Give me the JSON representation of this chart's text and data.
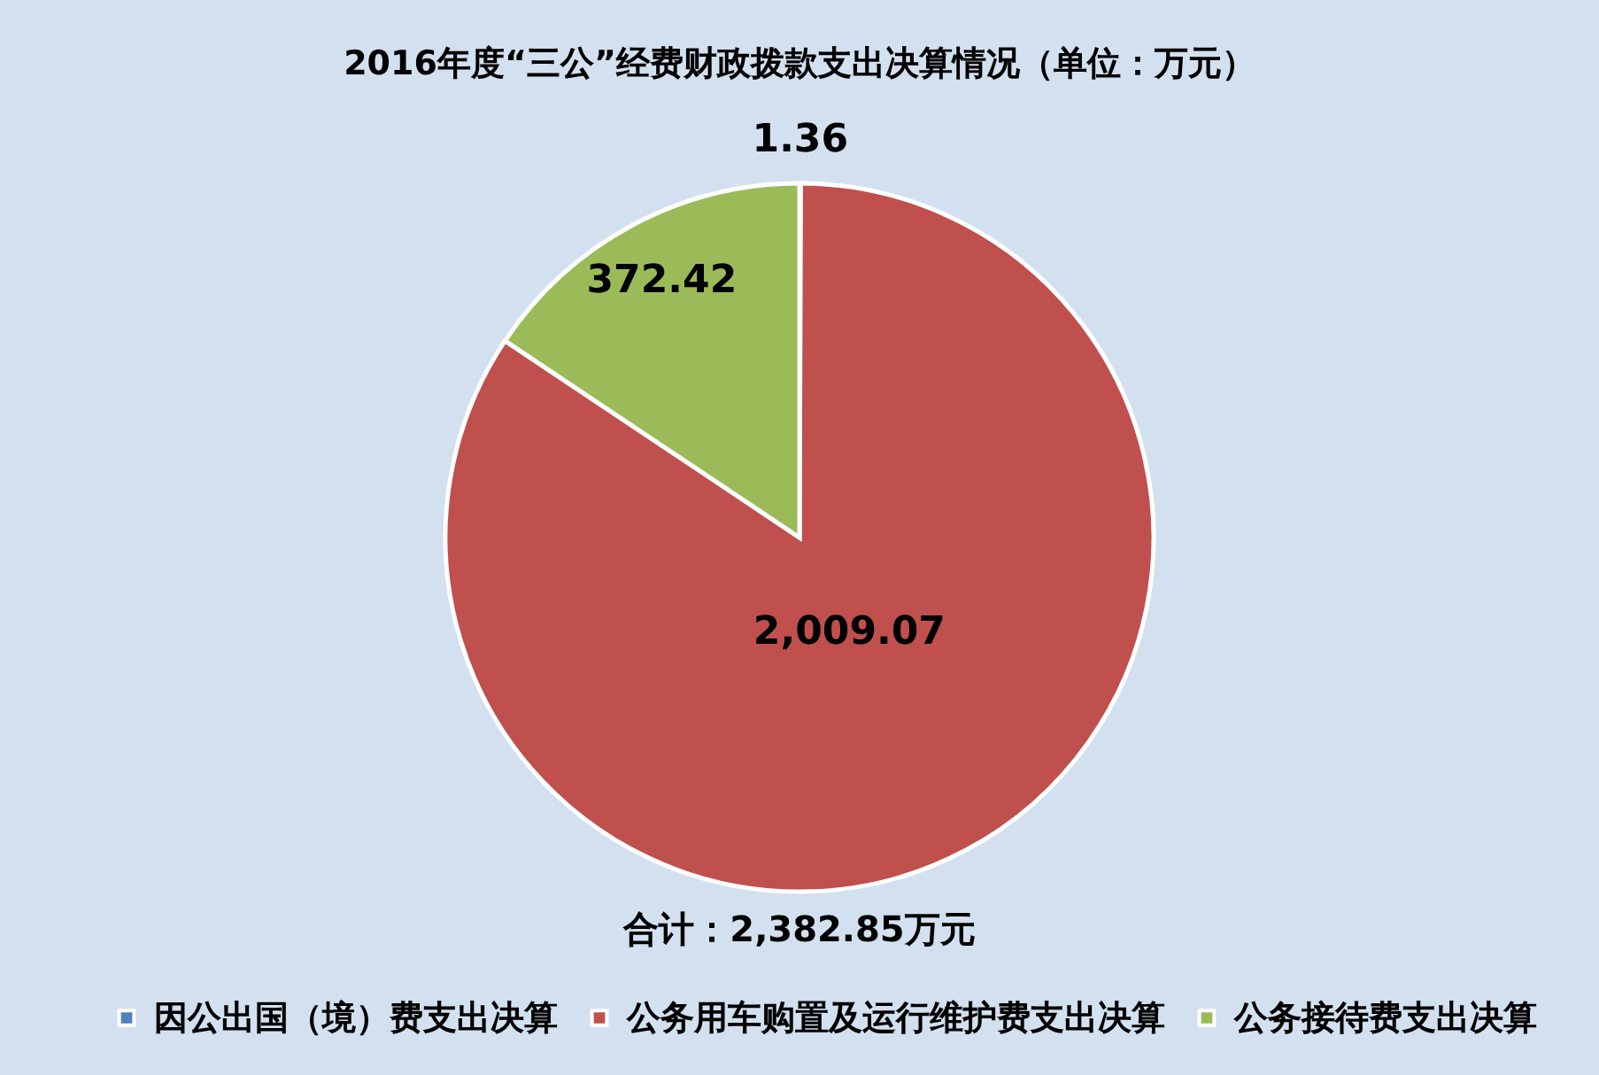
{
  "chart_data": {
    "type": "pie",
    "title": "2016年度“三公”经费财政拨款支出决算情况（单位：万元）",
    "categories": [
      "因公出国（境）费支出决算",
      "公务用车购置及运行维护费支出决算",
      "公务接待费支出决算"
    ],
    "values": [
      1.36,
      2009.07,
      372.42
    ],
    "colors": [
      "#4f81bd",
      "#c0504d",
      "#9bbb59"
    ],
    "value_labels": [
      "1.36",
      "2,009.07",
      "372.42"
    ],
    "annotations": [
      "合计：2,382.85万元"
    ],
    "legend": "bottom"
  }
}
